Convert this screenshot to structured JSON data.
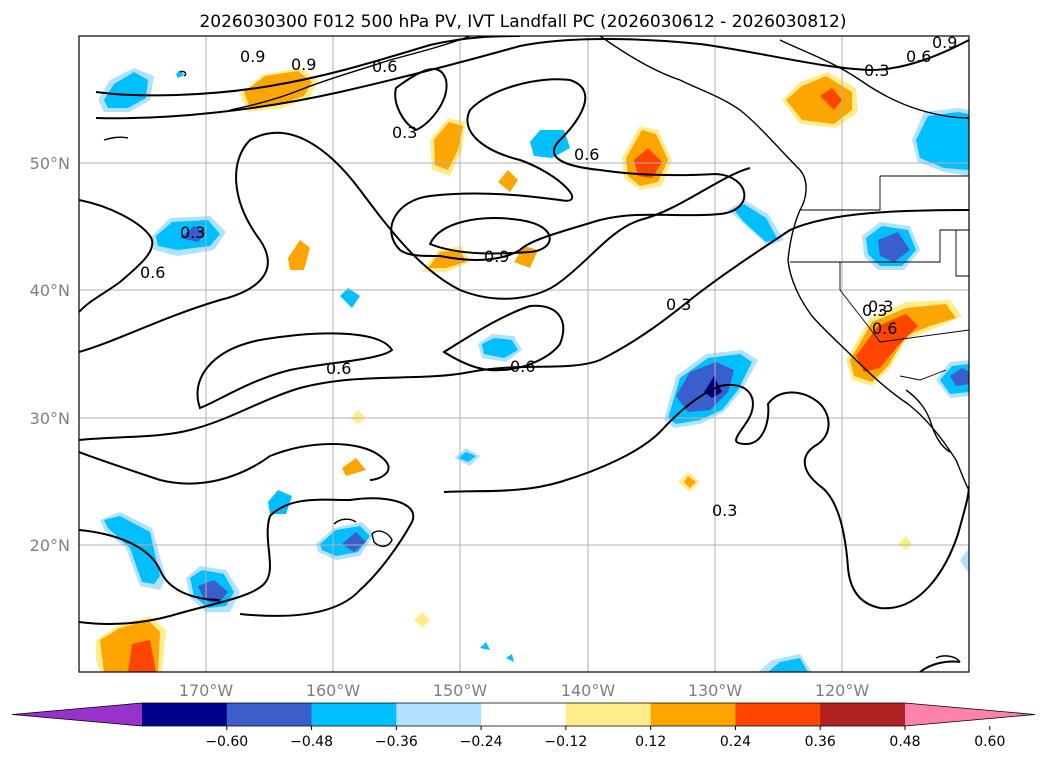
{
  "title": "2026030300 F012 500 hPa PV, IVT Landfall PC (2026030612 - 2026030812)",
  "map": {
    "lon_range": [
      -180,
      -110
    ],
    "lat_range": [
      10,
      60
    ],
    "lon_ticks": [
      "170°W",
      "160°W",
      "150°W",
      "140°W",
      "130°W",
      "120°W"
    ],
    "lat_ticks": [
      "50°N",
      "40°N",
      "30°N",
      "20°N"
    ],
    "grid": true
  },
  "contour_labels": [
    "0.9",
    "0.9",
    "0.6",
    "0.3",
    "0.6",
    "0.9",
    "0.3",
    "0.6",
    "0.6",
    "0.6",
    "0.3",
    "0.3",
    "0.9",
    "0.6",
    "0.3",
    "0.3",
    "0.6",
    "0.3"
  ],
  "colorbar": {
    "ticks": [
      "−0.60",
      "−0.48",
      "−0.36",
      "−0.24",
      "−0.12",
      "0.12",
      "0.24",
      "0.36",
      "0.48",
      "0.60"
    ],
    "colors": [
      "#9932cc",
      "#00008b",
      "#3a5fcd",
      "#00bfff",
      "#b0e2ff",
      "#ffffff",
      "#ffec8b",
      "#ffa500",
      "#ff4500",
      "#b22222",
      "#ff82ab"
    ],
    "extend": "both"
  }
}
